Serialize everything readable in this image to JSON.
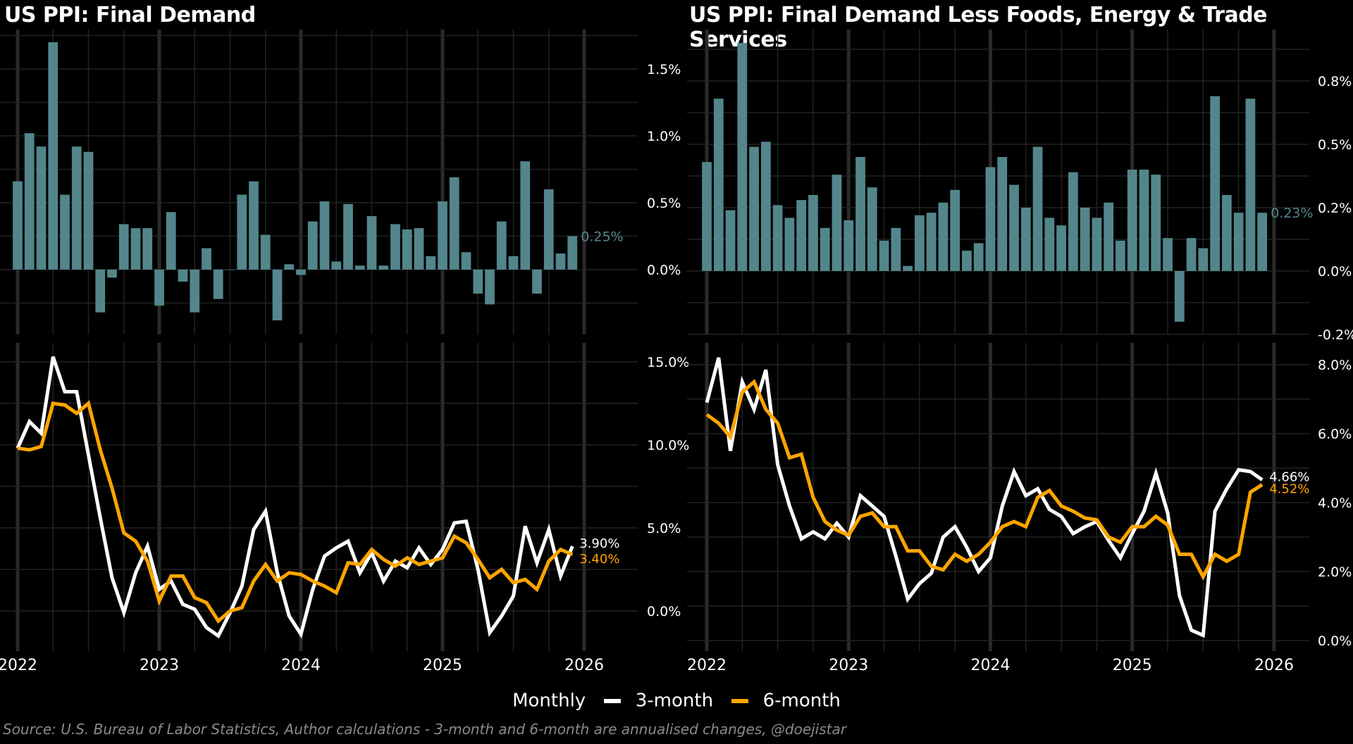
{
  "colors": {
    "background": "#000000",
    "bar": "#53868b",
    "three_month": "#ffffff",
    "six_month": "#ffa500",
    "grid": "#222222",
    "year_grid": "#2a2a2a",
    "source_text": "#8a8a8a"
  },
  "legend": {
    "monthly": "Monthly",
    "three_month": "3-month",
    "six_month": "6-month"
  },
  "source": "Source: U.S. Bureau of Labor Statistics, Author calculations - 3-month and 6-month are annualised changes, @doejistar",
  "chart_data": [
    {
      "id": "final-demand",
      "title": "US PPI: Final Demand",
      "x_start": "2022-01",
      "x_ticks": [
        "2022",
        "2023",
        "2024",
        "2025",
        "2026"
      ],
      "monthly": {
        "type": "bar",
        "ylim": [
          -0.45,
          1.8
        ],
        "yticks": [
          0.0,
          0.5,
          1.0,
          1.5
        ],
        "ytick_labels": [
          "0.0%",
          "0.5%",
          "1.0%",
          "1.5%"
        ],
        "last_label": "0.25%",
        "values": [
          0.66,
          1.02,
          0.92,
          1.7,
          0.56,
          0.92,
          0.88,
          -0.32,
          -0.06,
          0.34,
          0.31,
          0.31,
          -0.27,
          0.43,
          -0.09,
          -0.32,
          0.16,
          -0.22,
          0.0,
          0.56,
          0.66,
          0.26,
          -0.38,
          0.04,
          -0.04,
          0.36,
          0.51,
          0.06,
          0.49,
          0.03,
          0.4,
          0.03,
          0.34,
          0.3,
          0.31,
          0.1,
          0.51,
          0.69,
          0.13,
          -0.18,
          -0.26,
          0.36,
          0.1,
          0.81,
          -0.18,
          0.6,
          0.12,
          0.25
        ]
      },
      "annualised": {
        "type": "line",
        "ylim": [
          -2.7,
          16.5
        ],
        "yticks": [
          0,
          5,
          10,
          15
        ],
        "ytick_labels": [
          "0.0%",
          "5.0%",
          "10.0%",
          "15.0%"
        ],
        "series": [
          {
            "name": "3-month",
            "last_label": "3.90%",
            "values": [
              9.8,
              11.4,
              10.7,
              15.3,
              13.2,
              13.2,
              9.4,
              5.6,
              2.0,
              -0.1,
              2.3,
              3.9,
              1.3,
              1.8,
              0.4,
              0.1,
              -1.0,
              -1.5,
              -0.1,
              1.5,
              4.9,
              6.0,
              2.3,
              -0.3,
              -1.4,
              1.3,
              3.3,
              3.8,
              4.2,
              2.3,
              3.5,
              1.8,
              3.0,
              2.6,
              3.8,
              2.8,
              3.7,
              5.3,
              5.4,
              2.5,
              -1.3,
              -0.3,
              0.9,
              5.1,
              2.9,
              4.9,
              2.1,
              3.9
            ]
          },
          {
            "name": "6-month",
            "last_label": "3.40%",
            "values": [
              9.8,
              9.7,
              9.9,
              12.5,
              12.4,
              11.9,
              12.5,
              9.7,
              7.4,
              4.7,
              4.2,
              3.0,
              0.6,
              2.1,
              2.1,
              0.8,
              0.5,
              -0.6,
              0.0,
              0.2,
              1.8,
              2.8,
              1.8,
              2.3,
              2.2,
              1.8,
              1.5,
              1.1,
              2.9,
              2.8,
              3.7,
              3.1,
              2.7,
              3.2,
              2.8,
              3.0,
              3.2,
              4.5,
              4.1,
              3.1,
              2.0,
              2.5,
              1.7,
              1.9,
              1.3,
              3.0,
              3.7,
              3.4
            ]
          }
        ]
      }
    },
    {
      "id": "final-demand-core",
      "title": "US PPI: Final Demand Less Foods, Energy & Trade Services",
      "x_start": "2022-01",
      "x_ticks": [
        "2022",
        "2023",
        "2024",
        "2025",
        "2026"
      ],
      "monthly": {
        "type": "bar",
        "ylim": [
          -0.25,
          0.95
        ],
        "yticks": [
          -0.25,
          0.0,
          0.25,
          0.5,
          0.75
        ],
        "ytick_labels": [
          "-0.2%",
          "0.0%",
          "0.2%",
          "0.5%",
          "0.8%"
        ],
        "last_label": "0.23%",
        "values": [
          0.43,
          0.68,
          0.24,
          0.9,
          0.49,
          0.51,
          0.26,
          0.21,
          0.28,
          0.3,
          0.17,
          0.38,
          0.2,
          0.45,
          0.33,
          0.12,
          0.17,
          0.02,
          0.22,
          0.23,
          0.27,
          0.32,
          0.08,
          0.11,
          0.41,
          0.45,
          0.34,
          0.25,
          0.49,
          0.21,
          0.18,
          0.39,
          0.25,
          0.21,
          0.27,
          0.12,
          0.4,
          0.4,
          0.38,
          0.13,
          -0.2,
          0.13,
          0.09,
          0.69,
          0.3,
          0.23,
          0.68,
          0.23
        ]
      },
      "annualised": {
        "type": "line",
        "ylim": [
          -0.3,
          8.9
        ],
        "yticks": [
          0,
          2,
          4,
          6,
          8
        ],
        "ytick_labels": [
          "0.0%",
          "2.0%",
          "4.0%",
          "6.0%",
          "8.0%"
        ],
        "series": [
          {
            "name": "3-month",
            "last_label": "4.66%",
            "values": [
              6.9,
              8.2,
              5.5,
              7.5,
              6.7,
              7.85,
              5.1,
              3.9,
              2.95,
              3.15,
              2.95,
              3.4,
              3.0,
              4.2,
              3.9,
              3.6,
              2.45,
              1.2,
              1.65,
              1.95,
              3.0,
              3.3,
              2.7,
              2.0,
              2.4,
              3.9,
              4.9,
              4.2,
              4.4,
              3.8,
              3.6,
              3.1,
              3.3,
              3.45,
              2.9,
              2.4,
              3.1,
              3.75,
              4.85,
              3.7,
              1.3,
              0.3,
              0.15,
              3.75,
              4.4,
              4.95,
              4.9,
              4.66
            ]
          },
          {
            "name": "6-month",
            "last_label": "4.52%",
            "values": [
              6.55,
              6.3,
              5.9,
              7.2,
              7.5,
              6.7,
              6.3,
              5.3,
              5.4,
              4.15,
              3.45,
              3.2,
              3.05,
              3.6,
              3.7,
              3.3,
              3.3,
              2.6,
              2.6,
              2.15,
              2.05,
              2.5,
              2.3,
              2.5,
              2.85,
              3.3,
              3.45,
              3.3,
              4.15,
              4.35,
              3.9,
              3.75,
              3.55,
              3.5,
              3.0,
              2.85,
              3.3,
              3.3,
              3.6,
              3.35,
              2.5,
              2.5,
              1.85,
              2.5,
              2.3,
              2.5,
              4.3,
              4.52
            ]
          }
        ]
      }
    }
  ]
}
